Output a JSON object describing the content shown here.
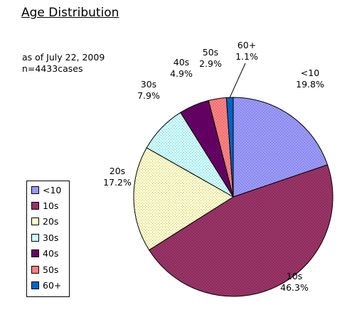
{
  "chart_data": {
    "type": "pie",
    "title": "Age Distribution",
    "notes": [
      "as of July 22, 2009",
      "n=4433cases"
    ],
    "legend_position": "bottom-left",
    "start": "top, clockwise",
    "slices": [
      {
        "label": "<10",
        "value": 19.8,
        "percent_label": "19.8%",
        "color": "#9999ff"
      },
      {
        "label": "10s",
        "value": 46.3,
        "percent_label": "46.3%",
        "color": "#993366"
      },
      {
        "label": "20s",
        "value": 17.2,
        "percent_label": "17.2%",
        "color": "#ffffcc"
      },
      {
        "label": "30s",
        "value": 7.9,
        "percent_label": "7.9%",
        "color": "#ccffff"
      },
      {
        "label": "40s",
        "value": 4.9,
        "percent_label": "4.9%",
        "color": "#660066"
      },
      {
        "label": "50s",
        "value": 2.9,
        "percent_label": "2.9%",
        "color": "#ff8080"
      },
      {
        "label": "60+",
        "value": 1.1,
        "percent_label": "1.1%",
        "color": "#0066cc"
      }
    ]
  }
}
